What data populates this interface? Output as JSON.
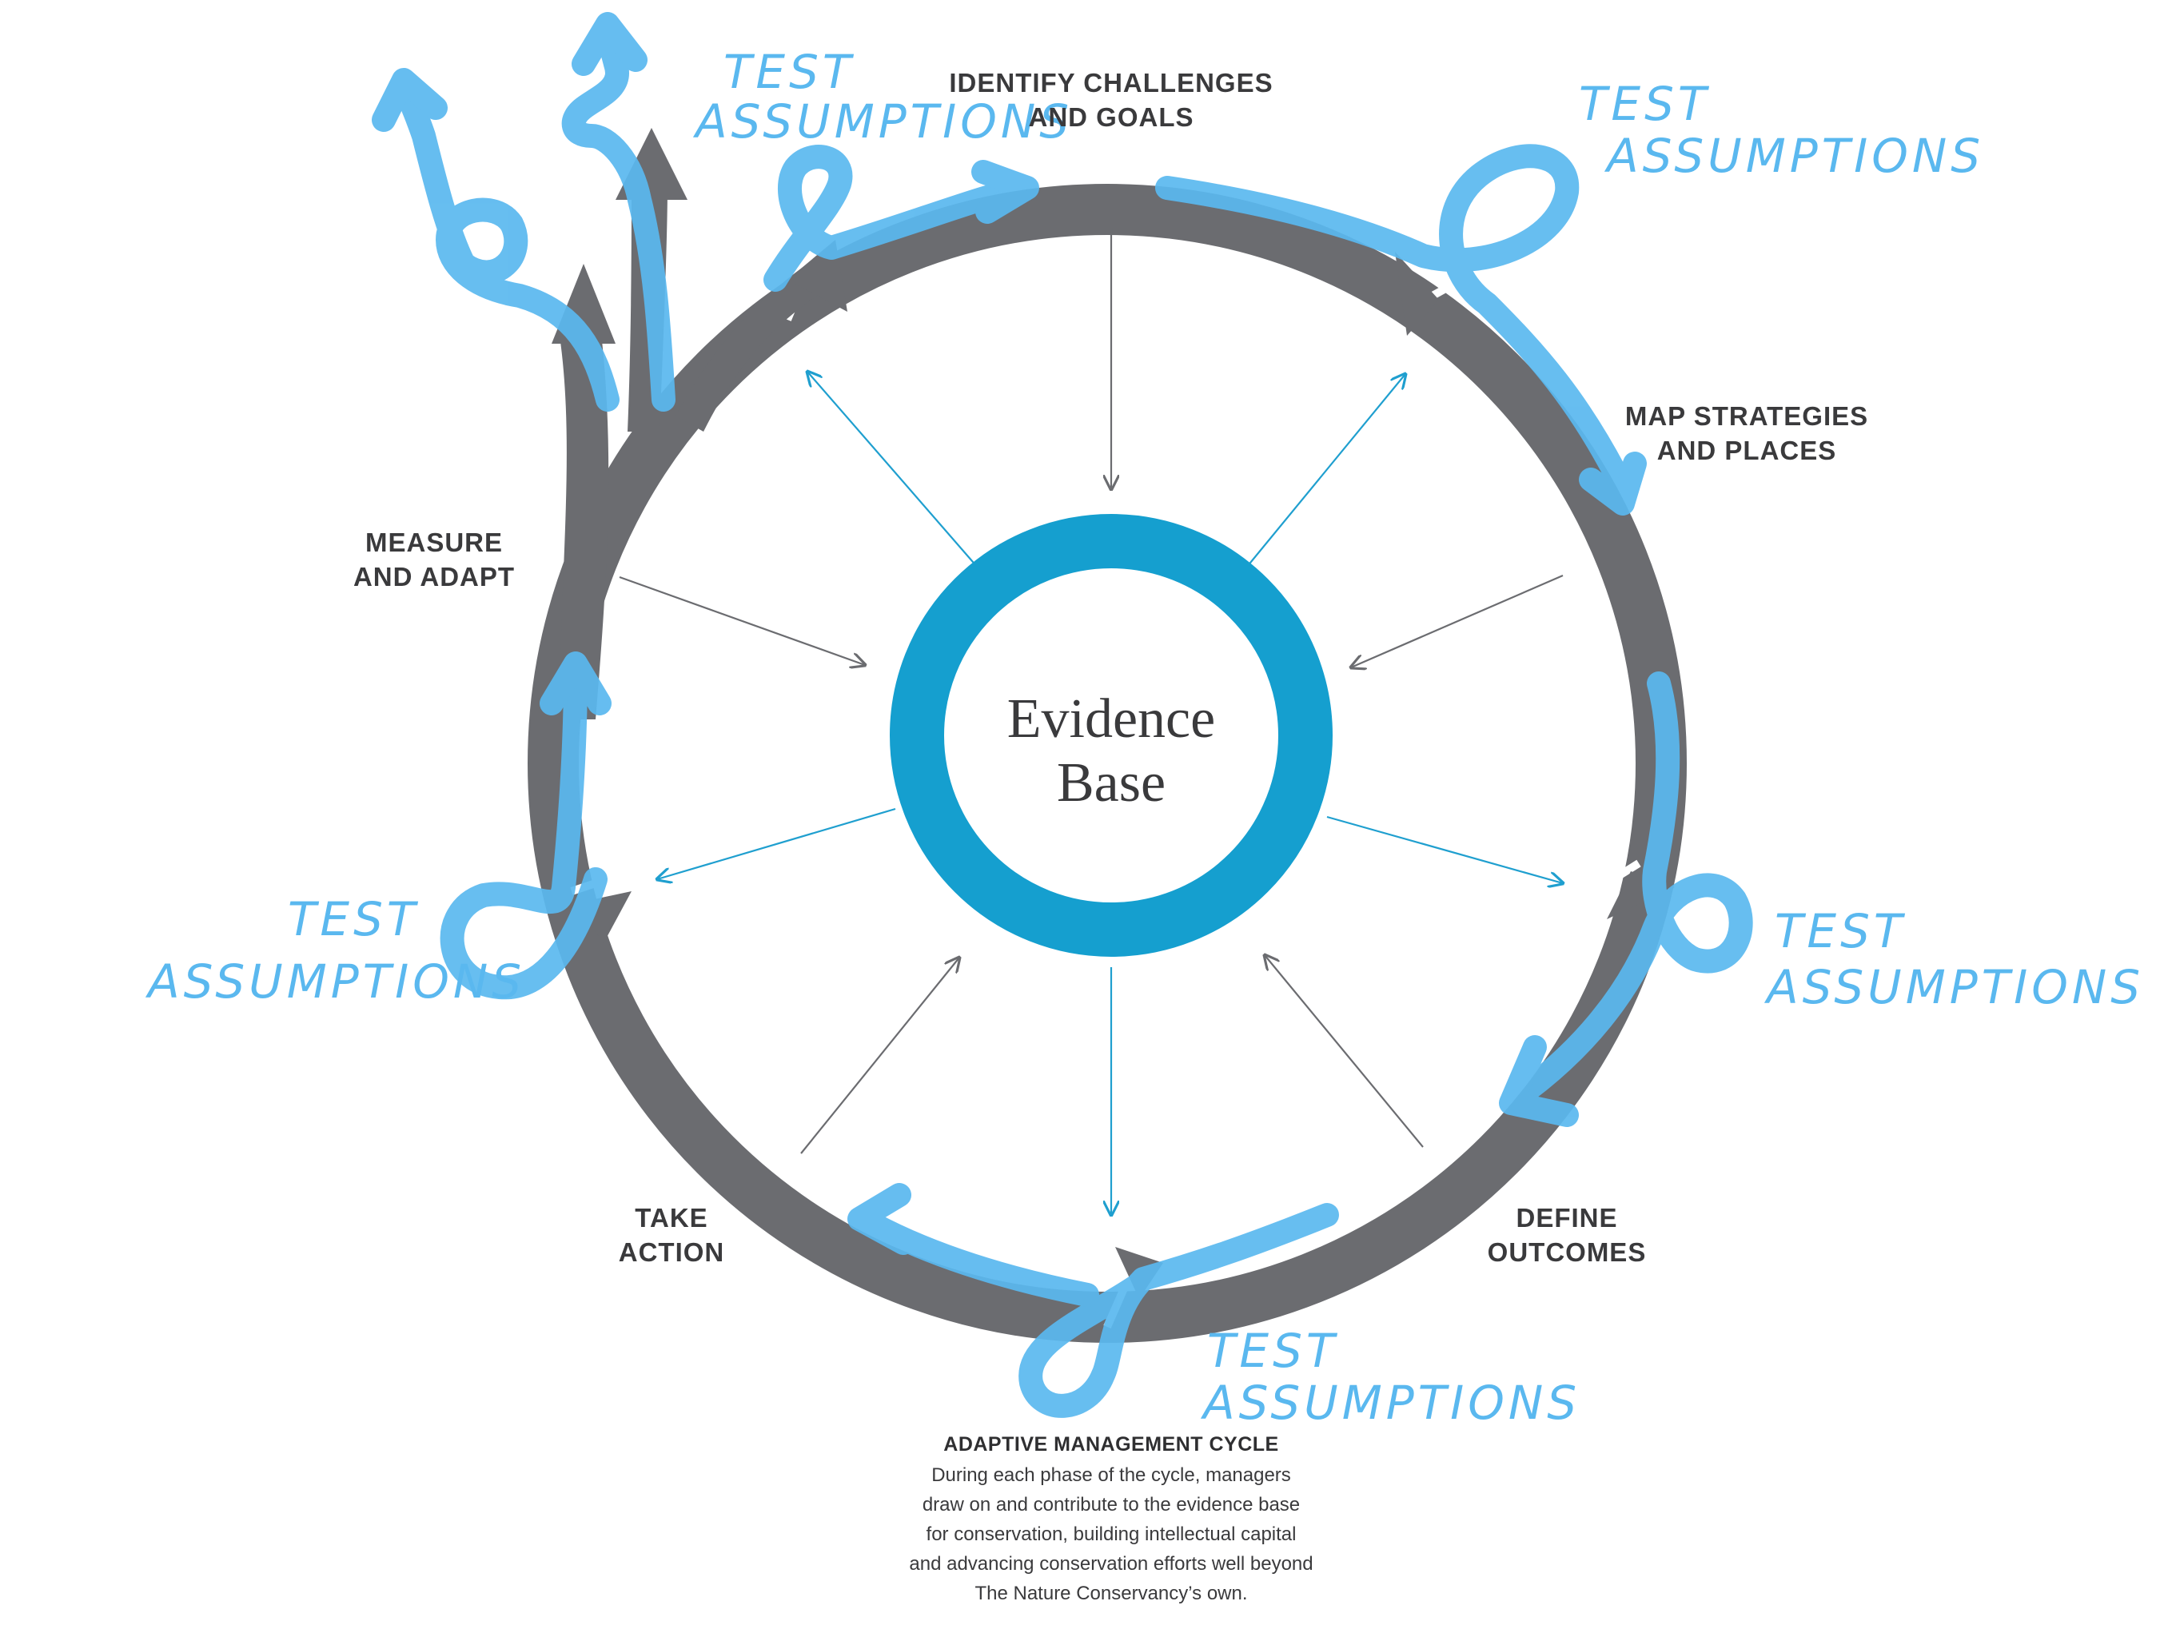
{
  "diagram": {
    "center": {
      "line1": "Evidence",
      "line2": "Base"
    },
    "phases": {
      "identify": {
        "line1": "IDENTIFY CHALLENGES",
        "line2": "AND GOALS"
      },
      "map": {
        "line1": "MAP STRATEGIES",
        "line2": "AND PLACES"
      },
      "define": {
        "line1": "DEFINE",
        "line2": "OUTCOMES"
      },
      "take_action": {
        "line1": "TAKE",
        "line2": "ACTION"
      },
      "measure": {
        "line1": "MEASURE",
        "line2": "AND ADAPT"
      }
    },
    "test_assumptions": {
      "line1": "TEST",
      "line2": "ASSUMPTIONS"
    },
    "colors": {
      "ring_gray": "#6b6c70",
      "center_ring_blue": "#159fcf",
      "hand_drawn_blue": "#5ab8ef",
      "thin_arrow_blue": "#1f9fcf",
      "thin_arrow_gray": "#6b6c70",
      "text_dark": "#3a3a3c"
    }
  },
  "caption": {
    "title": "ADAPTIVE MANAGEMENT CYCLE",
    "lines": [
      "During each phase of the cycle, managers",
      "draw on and contribute to the evidence base",
      "for conservation, building intellectual capital",
      "and advancing conservation efforts well beyond",
      "The Nature Conservancy’s own."
    ]
  }
}
